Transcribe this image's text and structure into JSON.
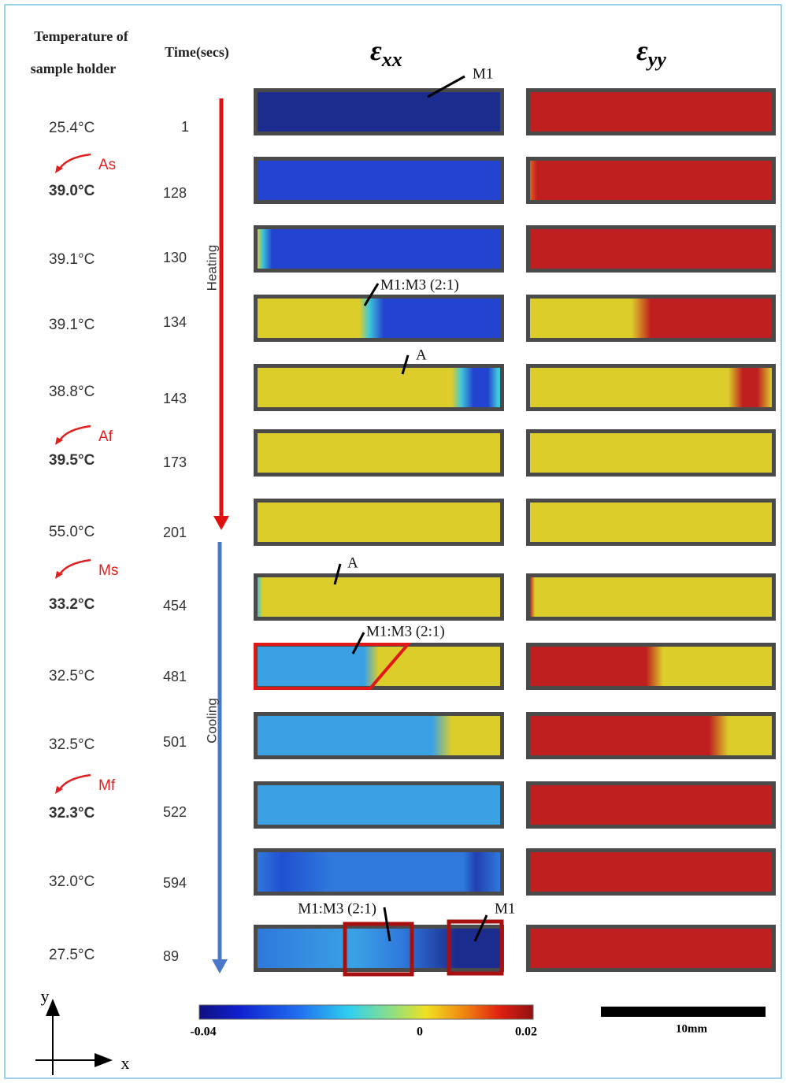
{
  "header": {
    "temperature": [
      "Temperature of",
      "sample holder"
    ],
    "time": "Time(secs)",
    "exx": {
      "symbol": "ε",
      "subscript": "xx"
    },
    "eyy": {
      "symbol": "ε",
      "subscript": "yy"
    }
  },
  "rows": [
    {
      "temperature": "25.4°C",
      "time": "1"
    },
    {
      "temperature": "39.0°C",
      "time": "128",
      "transition": "As"
    },
    {
      "temperature": "39.1°C",
      "time": "130"
    },
    {
      "temperature": "39.1°C",
      "time": "134"
    },
    {
      "temperature": "38.8°C",
      "time": "143"
    },
    {
      "temperature": "39.5°C",
      "time": "173",
      "transition": "Af"
    },
    {
      "temperature": "55.0°C",
      "time": "201"
    },
    {
      "temperature": "33.2°C",
      "time": "454",
      "transition": "Ms"
    },
    {
      "temperature": "32.5°C",
      "time": "481"
    },
    {
      "temperature": "32.5°C",
      "time": "501"
    },
    {
      "temperature": "32.3°C",
      "time": "522",
      "transition": "Mf"
    },
    {
      "temperature": "32.0°C",
      "time": "594"
    },
    {
      "temperature": "27.5°C",
      "time": "89"
    }
  ],
  "arrows": {
    "heating": "Heating",
    "cooling": "Cooling"
  },
  "annotations": [
    "M1",
    "M1:M3 (2:1)",
    "A",
    "A",
    "M1:M3 (2:1)",
    "M1:M3 (2:1)",
    "M1"
  ],
  "colorbar": {
    "ticks": [
      "-0.04",
      "0",
      "0.02"
    ]
  },
  "scale_bar": "10mm",
  "axes": {
    "y": "y",
    "x": "x"
  }
}
